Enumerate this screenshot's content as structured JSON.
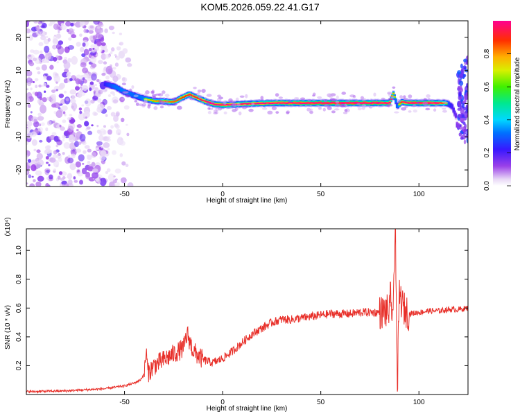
{
  "title": "KOM5.2026.059.22.41.G17",
  "chart_data": [
    {
      "type": "heatmap",
      "xlabel": "Height of straight line (km)",
      "ylabel": "Frequency (Hz)",
      "xlim": [
        -100,
        125
      ],
      "ylim": [
        -25,
        25
      ],
      "xticks": [
        -50,
        0,
        50,
        100
      ],
      "yticks": [
        -20,
        -10,
        0,
        10,
        20
      ],
      "colorbar": {
        "label": "Normalized spectral amplitude",
        "range": [
          0,
          1
        ],
        "ticks": [
          0.0,
          0.2,
          0.4,
          0.6,
          0.8
        ],
        "colormap": "rainbow"
      },
      "ridge": {
        "x": [
          -60,
          -55,
          -50,
          -45,
          -40,
          -35,
          -30,
          -25,
          -20,
          -17,
          -12,
          -8,
          -4,
          0,
          5,
          10,
          20,
          30,
          40,
          50,
          60,
          70,
          80,
          85,
          87,
          88,
          89,
          91,
          95,
          100,
          105,
          110,
          113,
          115,
          117,
          119,
          120
        ],
        "freq": [
          6,
          5.2,
          3.5,
          2.5,
          1.5,
          0.8,
          0.7,
          0.5,
          2,
          2.8,
          1.5,
          0.5,
          -0.2,
          -0.4,
          -0.3,
          -0.1,
          0.1,
          0.2,
          0.2,
          0.2,
          0.2,
          0.2,
          0.2,
          0.2,
          3,
          1.2,
          -1,
          0.5,
          0.2,
          0.2,
          0.2,
          0.2,
          0.2,
          0,
          -1,
          -4,
          -10
        ],
        "amplitude": [
          0.35,
          0.55,
          0.6,
          0.55,
          0.6,
          0.7,
          0.75,
          0.75,
          0.8,
          0.85,
          0.85,
          0.9,
          0.95,
          0.95,
          0.9,
          0.9,
          0.92,
          0.95,
          0.97,
          1.0,
          1.0,
          1.0,
          0.97,
          0.95,
          0.7,
          0.6,
          0.5,
          0.85,
          0.97,
          1.0,
          0.97,
          0.9,
          0.8,
          0.5,
          0.3,
          0.2,
          0.15
        ]
      },
      "noise_region": {
        "x_range": [
          -100,
          -50
        ],
        "freq_range": [
          -25,
          25
        ],
        "amplitude_range": [
          0,
          0.3
        ]
      },
      "edge_feature": {
        "x_range": [
          120,
          125
        ],
        "freq_range": [
          -12,
          14
        ],
        "amplitude_range": [
          0.1,
          0.3
        ]
      }
    },
    {
      "type": "line",
      "xlabel": "Height of straight line (km)",
      "ylabel": "SNR (10 * v/v)",
      "yscale_label": "(x10⁴)",
      "xlim": [
        -100,
        125
      ],
      "ylim": [
        0,
        1.15
      ],
      "xticks": [
        -50,
        0,
        50,
        100
      ],
      "yticks": [
        0.2,
        0.4,
        0.6,
        0.8,
        1.0
      ],
      "color": "#e8302a",
      "series": [
        {
          "x": [
            -100,
            -80,
            -60,
            -50,
            -45,
            -42,
            -40,
            -39,
            -38,
            -35,
            -30,
            -25,
            -20,
            -18,
            -15,
            -10,
            -5,
            0,
            5,
            10,
            15,
            20,
            25,
            30,
            35,
            40,
            45,
            50,
            55,
            60,
            65,
            70,
            75,
            80,
            85,
            87,
            88,
            89,
            90,
            92,
            95,
            100,
            105,
            110,
            115,
            120,
            125
          ],
          "values": [
            0.02,
            0.025,
            0.04,
            0.06,
            0.08,
            0.1,
            0.14,
            0.3,
            0.15,
            0.2,
            0.24,
            0.28,
            0.32,
            0.42,
            0.3,
            0.24,
            0.22,
            0.25,
            0.3,
            0.36,
            0.42,
            0.46,
            0.5,
            0.52,
            0.52,
            0.53,
            0.54,
            0.55,
            0.56,
            0.56,
            0.56,
            0.57,
            0.57,
            0.57,
            0.58,
            0.6,
            1.15,
            0.02,
            0.7,
            0.6,
            0.56,
            0.57,
            0.58,
            0.58,
            0.59,
            0.59,
            0.6
          ]
        }
      ]
    }
  ]
}
